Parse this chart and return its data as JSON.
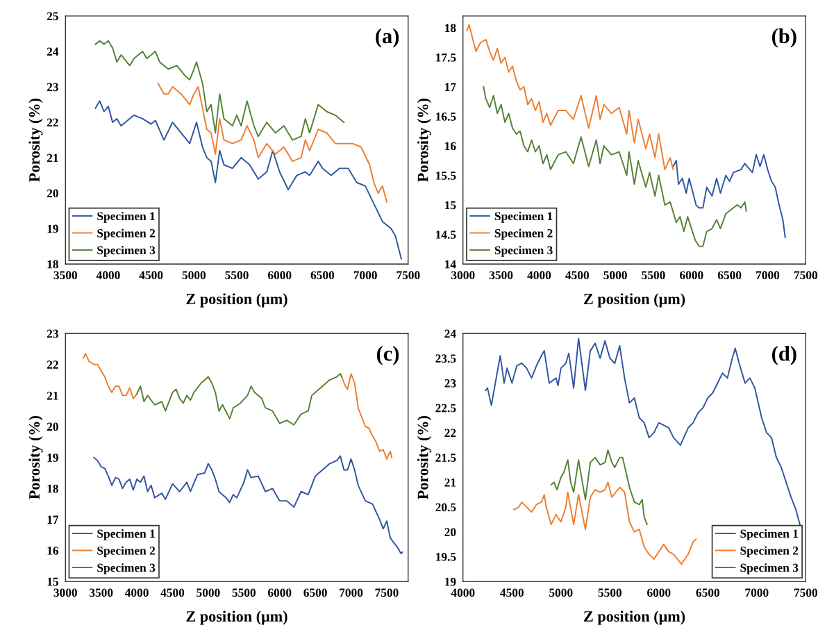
{
  "chart_data": [
    {
      "type": "line",
      "xlabel": "Z position (μm)",
      "ylabel": "Porosity (%)",
      "annotations": [
        "(a)"
      ],
      "xlim": [
        3500,
        7500
      ],
      "xticks": [
        3500,
        4000,
        4500,
        5000,
        5500,
        6000,
        6500,
        7000,
        7500
      ],
      "ylim": [
        18,
        25
      ],
      "yticks": [
        18,
        19,
        20,
        21,
        22,
        23,
        24,
        25
      ],
      "grid": false,
      "legend": "bottom left",
      "marker": "none",
      "line_style": "solid",
      "series": [
        {
          "name": "Specimen 1",
          "color": "#2f55a0",
          "x": [
            3850,
            3900,
            3950,
            4000,
            4050,
            4100,
            4150,
            4200,
            4300,
            4400,
            4500,
            4550,
            4650,
            4750,
            4850,
            4950,
            5030,
            5100,
            5150,
            5200,
            5250,
            5300,
            5350,
            5450,
            5550,
            5650,
            5750,
            5850,
            5920,
            6000,
            6100,
            6200,
            6300,
            6350,
            6450,
            6500,
            6600,
            6700,
            6800,
            6900,
            7000,
            7100,
            7200,
            7300,
            7350,
            7420
          ],
          "values": [
            22.4,
            22.6,
            22.3,
            22.45,
            22.0,
            22.1,
            21.9,
            22.0,
            22.2,
            22.1,
            21.95,
            22.05,
            21.5,
            22.0,
            21.7,
            21.4,
            22.0,
            21.3,
            21.0,
            20.9,
            20.3,
            21.2,
            20.8,
            20.7,
            21.0,
            20.8,
            20.4,
            20.6,
            21.2,
            20.6,
            20.1,
            20.5,
            20.6,
            20.5,
            20.9,
            20.7,
            20.5,
            20.7,
            20.7,
            20.3,
            20.2,
            19.7,
            19.2,
            19.0,
            18.8,
            18.15
          ]
        },
        {
          "name": "Specimen 2",
          "color": "#ed7d31",
          "x": [
            4580,
            4650,
            4700,
            4750,
            4850,
            4950,
            5000,
            5050,
            5100,
            5150,
            5200,
            5250,
            5300,
            5350,
            5450,
            5550,
            5620,
            5700,
            5750,
            5850,
            5950,
            6050,
            6150,
            6250,
            6300,
            6350,
            6450,
            6550,
            6650,
            6750,
            6850,
            6950,
            7050,
            7100,
            7150,
            7200,
            7250
          ],
          "values": [
            23.1,
            22.8,
            22.8,
            23.0,
            22.8,
            22.5,
            22.8,
            23.0,
            22.4,
            21.8,
            21.7,
            21.1,
            22.1,
            21.5,
            21.4,
            21.5,
            21.9,
            21.5,
            21.0,
            21.4,
            21.1,
            21.3,
            20.9,
            21.0,
            21.5,
            21.2,
            21.8,
            21.7,
            21.4,
            21.4,
            21.4,
            21.3,
            20.8,
            20.3,
            20.0,
            20.2,
            19.75
          ]
        },
        {
          "name": "Specimen 3",
          "color": "#548235",
          "x": [
            3850,
            3900,
            3950,
            4000,
            4050,
            4100,
            4150,
            4250,
            4300,
            4400,
            4450,
            4550,
            4600,
            4700,
            4800,
            4900,
            4950,
            5000,
            5030,
            5100,
            5150,
            5200,
            5250,
            5300,
            5350,
            5450,
            5500,
            5550,
            5620,
            5700,
            5750,
            5850,
            5950,
            6050,
            6150,
            6250,
            6300,
            6350,
            6450,
            6550,
            6650,
            6750
          ],
          "values": [
            24.2,
            24.3,
            24.2,
            24.3,
            24.1,
            23.7,
            23.9,
            23.6,
            23.8,
            24.0,
            23.8,
            24.0,
            23.7,
            23.5,
            23.6,
            23.3,
            23.2,
            23.5,
            23.7,
            23.1,
            22.3,
            22.5,
            21.7,
            22.8,
            22.1,
            21.9,
            22.2,
            21.9,
            22.6,
            21.9,
            21.6,
            22.0,
            21.7,
            21.9,
            21.5,
            21.6,
            22.1,
            21.7,
            22.5,
            22.3,
            22.2,
            22.0
          ]
        }
      ]
    },
    {
      "type": "line",
      "xlabel": "Z position (μm)",
      "ylabel": "Porosity (%)",
      "annotations": [
        "(b)"
      ],
      "xlim": [
        3000,
        7500
      ],
      "xticks": [
        3000,
        3500,
        4000,
        4500,
        5000,
        5500,
        6000,
        6500,
        7000,
        7500
      ],
      "ylim": [
        14,
        18.2
      ],
      "yticks": [
        14,
        14.5,
        15,
        15.5,
        16,
        16.5,
        17,
        17.5,
        18
      ],
      "grid": false,
      "legend": "bottom left",
      "marker": "none",
      "line_style": "solid",
      "series": [
        {
          "name": "Specimen 1",
          "color": "#2f55a0",
          "x": [
            5760,
            5800,
            5830,
            5880,
            5930,
            5970,
            6020,
            6060,
            6100,
            6150,
            6200,
            6270,
            6330,
            6380,
            6450,
            6500,
            6550,
            6650,
            6700,
            6800,
            6850,
            6900,
            6950,
            7000,
            7050,
            7100,
            7150,
            7200,
            7230
          ],
          "values": [
            15.65,
            15.75,
            15.35,
            15.45,
            15.2,
            15.45,
            15.2,
            15.0,
            14.95,
            14.95,
            15.3,
            15.15,
            15.45,
            15.2,
            15.5,
            15.4,
            15.55,
            15.6,
            15.7,
            15.55,
            15.85,
            15.65,
            15.85,
            15.6,
            15.4,
            15.3,
            15.0,
            14.75,
            14.45
          ]
        },
        {
          "name": "Specimen 2",
          "color": "#ed7d31",
          "x": [
            3050,
            3080,
            3130,
            3170,
            3230,
            3300,
            3350,
            3400,
            3450,
            3500,
            3550,
            3600,
            3650,
            3700,
            3750,
            3800,
            3850,
            3900,
            3950,
            4000,
            4050,
            4100,
            4150,
            4250,
            4350,
            4450,
            4550,
            4650,
            4750,
            4800,
            4850,
            4950,
            5050,
            5150,
            5180,
            5250,
            5300,
            5400,
            5450,
            5520,
            5570,
            5650,
            5720,
            5760
          ],
          "values": [
            17.95,
            18.05,
            17.8,
            17.6,
            17.75,
            17.8,
            17.6,
            17.45,
            17.65,
            17.4,
            17.5,
            17.25,
            17.35,
            17.1,
            16.95,
            17.0,
            16.7,
            16.8,
            16.6,
            16.75,
            16.4,
            16.55,
            16.35,
            16.6,
            16.6,
            16.45,
            16.85,
            16.3,
            16.85,
            16.45,
            16.7,
            16.55,
            16.65,
            16.2,
            16.6,
            16.05,
            16.45,
            15.95,
            16.2,
            15.8,
            16.2,
            15.6,
            15.8,
            15.6
          ]
        },
        {
          "name": "Specimen 3",
          "color": "#548235",
          "x": [
            3270,
            3300,
            3350,
            3400,
            3450,
            3500,
            3550,
            3600,
            3650,
            3700,
            3750,
            3800,
            3850,
            3900,
            3950,
            4000,
            4050,
            4100,
            4150,
            4250,
            4350,
            4450,
            4550,
            4650,
            4750,
            4800,
            4850,
            4950,
            5050,
            5150,
            5180,
            5250,
            5300,
            5400,
            5450,
            5520,
            5570,
            5650,
            5720,
            5800,
            5850,
            5900,
            5950,
            6000,
            6050,
            6100,
            6150,
            6200,
            6270,
            6330,
            6380,
            6450,
            6500,
            6600,
            6650,
            6700,
            6720
          ],
          "values": [
            17.0,
            16.8,
            16.65,
            16.85,
            16.55,
            16.7,
            16.4,
            16.55,
            16.3,
            16.2,
            16.25,
            16.0,
            15.9,
            16.1,
            15.9,
            16.0,
            15.7,
            15.85,
            15.6,
            15.85,
            15.9,
            15.7,
            16.15,
            15.65,
            16.1,
            15.7,
            16.0,
            15.85,
            15.9,
            15.5,
            15.9,
            15.35,
            15.75,
            15.3,
            15.55,
            15.15,
            15.5,
            15.0,
            15.05,
            14.7,
            14.8,
            14.55,
            14.8,
            14.6,
            14.4,
            14.3,
            14.3,
            14.55,
            14.6,
            14.75,
            14.6,
            14.85,
            14.9,
            15.0,
            14.95,
            15.05,
            14.9
          ]
        }
      ]
    },
    {
      "type": "line",
      "xlabel": "Z position (μm)",
      "ylabel": "Porosity (%)",
      "annotations": [
        "(c)"
      ],
      "xlim": [
        3000,
        7800
      ],
      "xticks": [
        3000,
        3500,
        4000,
        4500,
        5000,
        5500,
        6000,
        6500,
        7000,
        7500
      ],
      "ylim": [
        15,
        23
      ],
      "yticks": [
        15,
        16,
        17,
        18,
        19,
        20,
        21,
        22,
        23
      ],
      "grid": false,
      "legend": "bottom left",
      "marker": "none",
      "line_style": "solid",
      "series": [
        {
          "name": "Specimen 1",
          "color": "#2f55a0",
          "x": [
            3400,
            3450,
            3500,
            3550,
            3600,
            3650,
            3700,
            3750,
            3800,
            3850,
            3900,
            3950,
            4000,
            4050,
            4100,
            4150,
            4200,
            4250,
            4350,
            4400,
            4500,
            4600,
            4700,
            4750,
            4850,
            4950,
            5000,
            5050,
            5100,
            5150,
            5250,
            5300,
            5350,
            5400,
            5500,
            5550,
            5600,
            5700,
            5800,
            5900,
            6000,
            6100,
            6200,
            6300,
            6400,
            6500,
            6600,
            6700,
            6800,
            6850,
            6900,
            6950,
            7000,
            7050,
            7100,
            7200,
            7300,
            7400,
            7450,
            7500,
            7550,
            7650,
            7700,
            7720
          ],
          "values": [
            19.0,
            18.9,
            18.7,
            18.65,
            18.4,
            18.1,
            18.35,
            18.3,
            18.0,
            18.2,
            18.3,
            17.95,
            18.3,
            18.2,
            18.4,
            17.9,
            18.1,
            17.7,
            17.85,
            17.65,
            18.15,
            17.9,
            18.2,
            17.9,
            18.45,
            18.5,
            18.8,
            18.6,
            18.3,
            17.9,
            17.7,
            17.55,
            17.8,
            17.7,
            18.2,
            18.6,
            18.35,
            18.4,
            17.9,
            18.0,
            17.6,
            17.6,
            17.4,
            17.9,
            17.8,
            18.4,
            18.6,
            18.8,
            18.9,
            19.05,
            18.6,
            18.6,
            18.95,
            18.6,
            18.1,
            17.6,
            17.5,
            17.0,
            16.7,
            16.95,
            16.4,
            16.1,
            15.9,
            15.95
          ]
        },
        {
          "name": "Specimen 2",
          "color": "#ed7d31",
          "x": [
            3250,
            3280,
            3330,
            3400,
            3450,
            3500,
            3550,
            3600,
            3650,
            3700,
            3750,
            3800,
            3850,
            3900,
            3950,
            4000,
            5500,
            6870,
            6920,
            6950,
            7000,
            7050,
            7100,
            7150,
            7200,
            7250,
            7300,
            7350,
            7400,
            7450,
            7500,
            7550,
            7570
          ],
          "values": [
            22.2,
            22.35,
            22.1,
            22.0,
            22.0,
            21.8,
            21.6,
            21.3,
            21.1,
            21.3,
            21.3,
            21.0,
            21.0,
            21.25,
            20.9,
            21.05,
            null,
            21.6,
            21.3,
            21.2,
            21.7,
            21.4,
            20.6,
            20.3,
            20.0,
            19.95,
            19.7,
            19.5,
            19.2,
            19.25,
            18.95,
            19.2,
            19.0
          ]
        },
        {
          "name": "Specimen 3",
          "color": "#548235",
          "x": [
            4000,
            4050,
            4100,
            4150,
            4250,
            4350,
            4400,
            4450,
            4500,
            4550,
            4600,
            4650,
            4700,
            4750,
            4800,
            4900,
            5000,
            5050,
            5100,
            5150,
            5200,
            5300,
            5350,
            5450,
            5550,
            5600,
            5650,
            5750,
            5800,
            5900,
            6000,
            6100,
            6200,
            6300,
            6400,
            6450,
            6500,
            6600,
            6700,
            6800,
            6850,
            6870
          ],
          "values": [
            21.05,
            21.3,
            20.8,
            21.0,
            20.7,
            20.8,
            20.5,
            20.8,
            21.1,
            21.2,
            20.9,
            20.75,
            21.0,
            20.85,
            21.1,
            21.4,
            21.6,
            21.4,
            21.1,
            20.5,
            20.7,
            20.25,
            20.6,
            20.75,
            21.0,
            21.3,
            21.1,
            20.9,
            20.6,
            20.5,
            20.1,
            20.2,
            20.05,
            20.4,
            20.5,
            21.0,
            21.1,
            21.3,
            21.5,
            21.6,
            21.7,
            21.6
          ]
        }
      ]
    },
    {
      "type": "line",
      "xlabel": "Z position (μm)",
      "ylabel": "Porosity (%)",
      "annotations": [
        "(d)"
      ],
      "xlim": [
        4000,
        7500
      ],
      "xticks": [
        4000,
        4500,
        5000,
        5500,
        6000,
        6500,
        7000,
        7500
      ],
      "ylim": [
        19,
        24
      ],
      "yticks": [
        19,
        19.5,
        20,
        20.5,
        21,
        21.5,
        22,
        22.5,
        23,
        23.5,
        24
      ],
      "grid": false,
      "legend": "bottom right",
      "marker": "none",
      "line_style": "solid",
      "series": [
        {
          "name": "Specimen 1",
          "color": "#2f55a0",
          "x": [
            4230,
            4250,
            4290,
            4330,
            4380,
            4420,
            4450,
            4500,
            4550,
            4600,
            4650,
            4700,
            4750,
            4800,
            4830,
            4880,
            4950,
            4970,
            5000,
            5050,
            5080,
            5130,
            5180,
            5250,
            5300,
            5350,
            5400,
            5450,
            5500,
            5550,
            5600,
            5650,
            5700,
            5750,
            5800,
            5850,
            5900,
            5950,
            6000,
            6100,
            6150,
            6220,
            6300,
            6350,
            6400,
            6450,
            6500,
            6550,
            6600,
            6650,
            6700,
            6750,
            6780,
            6820,
            6880,
            6930,
            6980,
            7050,
            7100,
            7150,
            7200,
            7250,
            7300,
            7350,
            7400,
            7440
          ],
          "values": [
            22.85,
            22.9,
            22.55,
            23.0,
            23.55,
            23.0,
            23.3,
            23.0,
            23.35,
            23.4,
            23.3,
            23.1,
            23.35,
            23.55,
            23.65,
            23.0,
            23.1,
            22.95,
            23.3,
            23.4,
            23.6,
            22.9,
            23.9,
            22.85,
            23.65,
            23.8,
            23.5,
            23.85,
            23.5,
            23.4,
            23.75,
            23.1,
            22.6,
            22.7,
            22.3,
            22.2,
            21.9,
            22.0,
            22.2,
            22.1,
            21.9,
            21.75,
            22.1,
            22.2,
            22.4,
            22.5,
            22.7,
            22.8,
            23.0,
            23.2,
            23.1,
            23.5,
            23.7,
            23.4,
            23.0,
            23.1,
            22.9,
            22.3,
            22.0,
            21.9,
            21.5,
            21.3,
            21.0,
            20.7,
            20.45,
            20.15
          ]
        },
        {
          "name": "Specimen 2",
          "color": "#ed7d31",
          "x": [
            4520,
            4570,
            4600,
            4650,
            4700,
            4750,
            4800,
            4830,
            4850,
            4900,
            4950,
            5000,
            5050,
            5070,
            5130,
            5180,
            5250,
            5300,
            5350,
            5400,
            5450,
            5480,
            5520,
            5600,
            5650,
            5700,
            5750,
            5800,
            5850,
            5900,
            5950,
            6000,
            6050,
            6100,
            6150,
            6230,
            6300,
            6350,
            6380
          ],
          "values": [
            20.45,
            20.5,
            20.6,
            20.5,
            20.4,
            20.55,
            20.6,
            20.75,
            20.5,
            20.15,
            20.35,
            20.2,
            20.5,
            20.8,
            20.15,
            20.75,
            20.05,
            20.7,
            20.85,
            20.8,
            20.85,
            21.0,
            20.7,
            20.9,
            20.8,
            20.2,
            20.0,
            20.05,
            19.7,
            19.55,
            19.45,
            19.6,
            19.75,
            19.6,
            19.55,
            19.35,
            19.55,
            19.8,
            19.85
          ]
        },
        {
          "name": "Specimen 3",
          "color": "#548235",
          "x": [
            4900,
            4930,
            4960,
            5000,
            5030,
            5070,
            5100,
            5130,
            5180,
            5250,
            5300,
            5350,
            5400,
            5450,
            5480,
            5520,
            5550,
            5600,
            5630,
            5700,
            5750,
            5800,
            5830,
            5850,
            5880
          ],
          "values": [
            20.95,
            21.0,
            20.85,
            21.1,
            21.2,
            21.45,
            21.0,
            20.8,
            21.45,
            20.65,
            21.4,
            21.5,
            21.35,
            21.4,
            21.65,
            21.4,
            21.3,
            21.5,
            21.5,
            20.9,
            20.6,
            20.55,
            20.65,
            20.3,
            20.15
          ]
        }
      ]
    }
  ]
}
